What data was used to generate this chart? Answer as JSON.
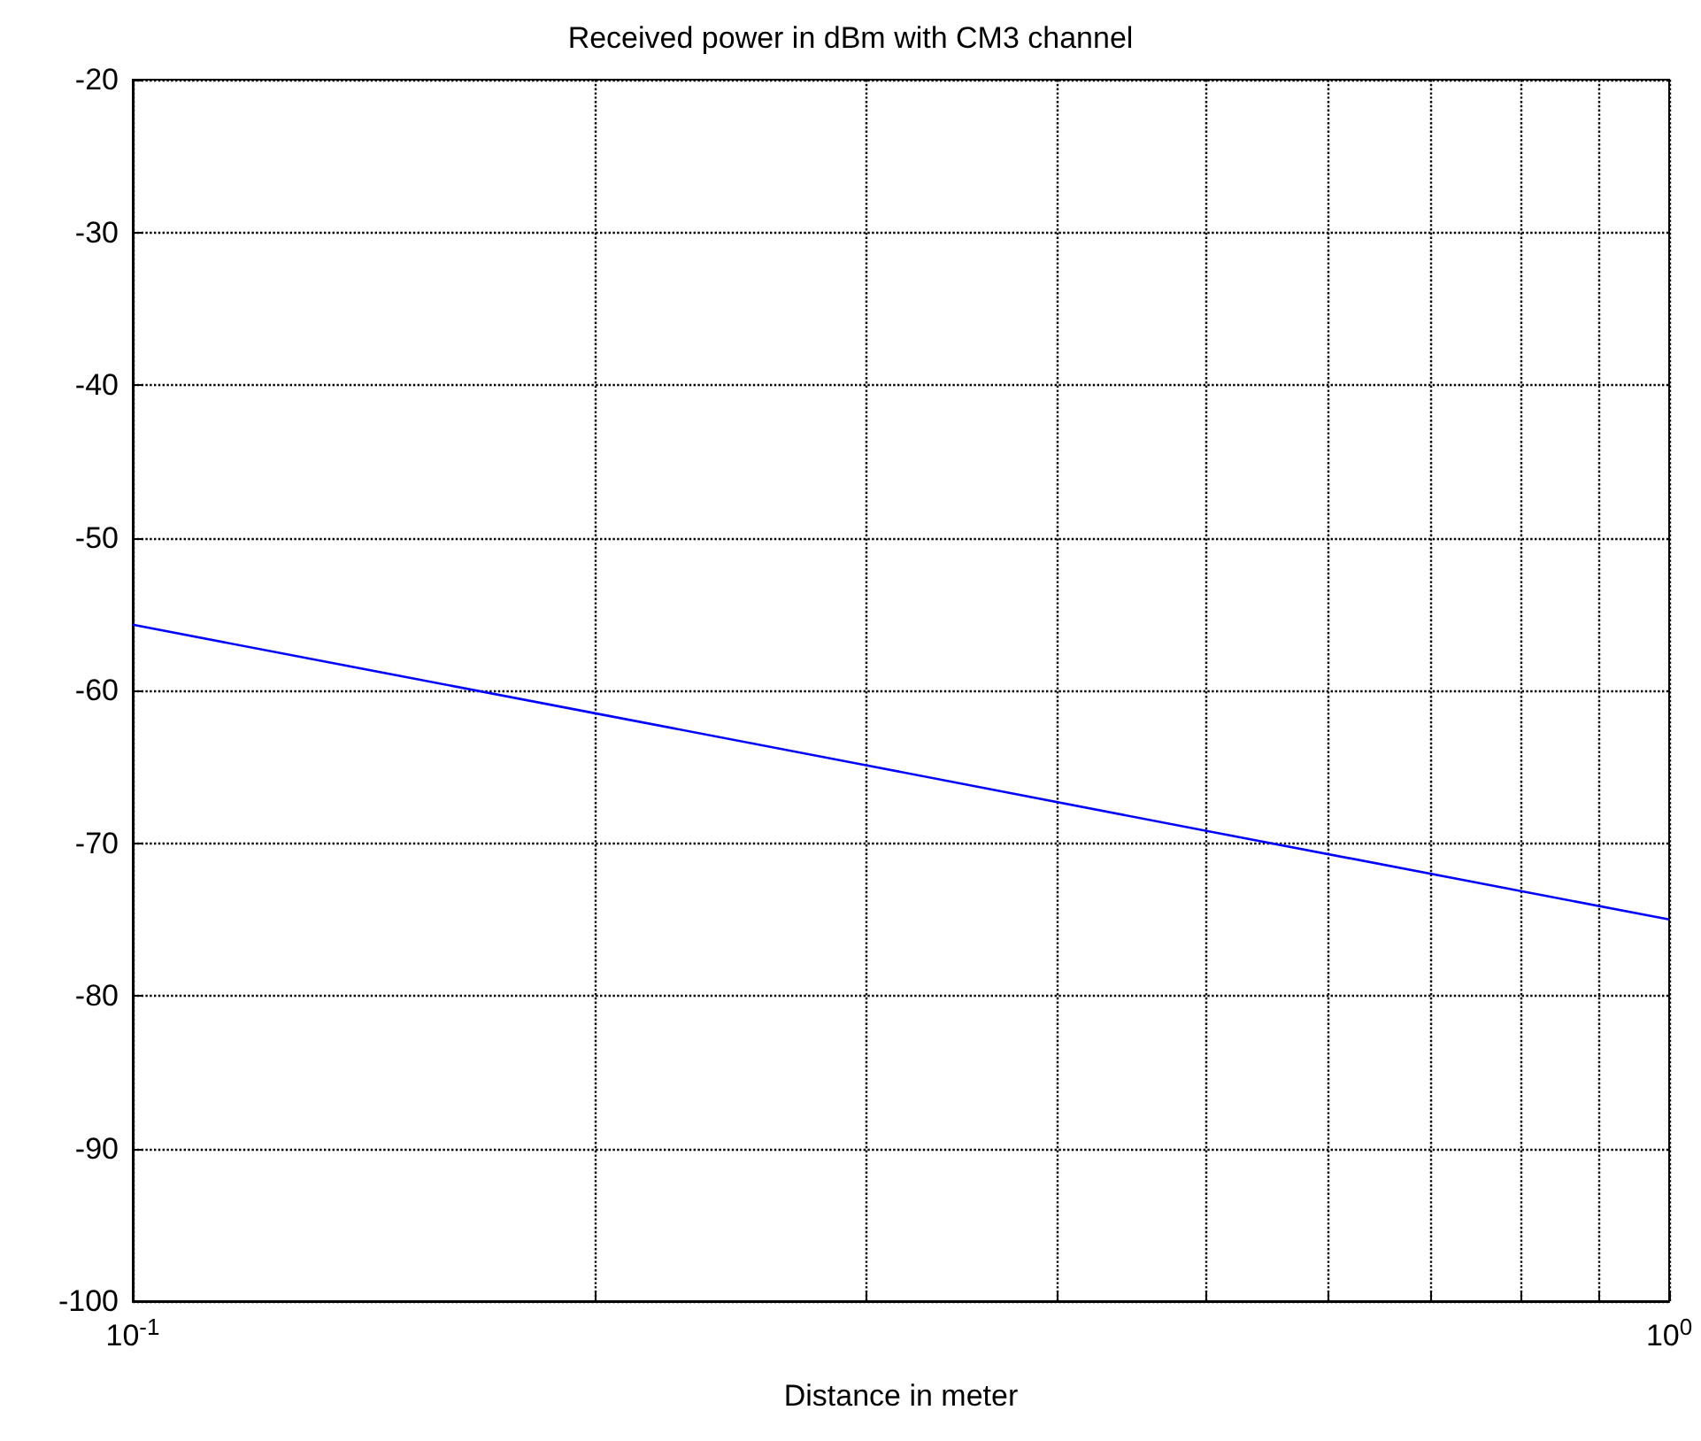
{
  "chart_data": {
    "type": "line",
    "title": "Received power in dBm with CM3 channel",
    "xlabel": "Distance in meter",
    "log": "x",
    "grid": true,
    "line_style": "solid",
    "marker": "none",
    "x": [
      0.1,
      0.2,
      0.3,
      0.5,
      1
    ],
    "series": [
      {
        "color": "#0000ff",
        "values": [
          -55.7,
          -61.5,
          -64.9,
          -69.2,
          -75
        ]
      }
    ],
    "xlim": [
      0.1,
      1
    ],
    "xticks": [
      {
        "value": 0.1,
        "label": "10$^{-1}$"
      },
      {
        "value": 0.2,
        "label": null
      },
      {
        "value": 0.3,
        "label": null
      },
      {
        "value": 0.4,
        "label": null
      },
      {
        "value": 0.5,
        "label": null
      },
      {
        "value": 0.6,
        "label": null
      },
      {
        "value": 0.7,
        "label": null
      },
      {
        "value": 0.8,
        "label": null
      },
      {
        "value": 0.9,
        "label": null
      },
      {
        "value": 1,
        "label": "10$^{0}$"
      }
    ],
    "ylim": [
      -100,
      -20
    ],
    "yticks": [
      -100,
      -90,
      -80,
      -70,
      -60,
      -50,
      -40,
      -30,
      -20
    ]
  }
}
